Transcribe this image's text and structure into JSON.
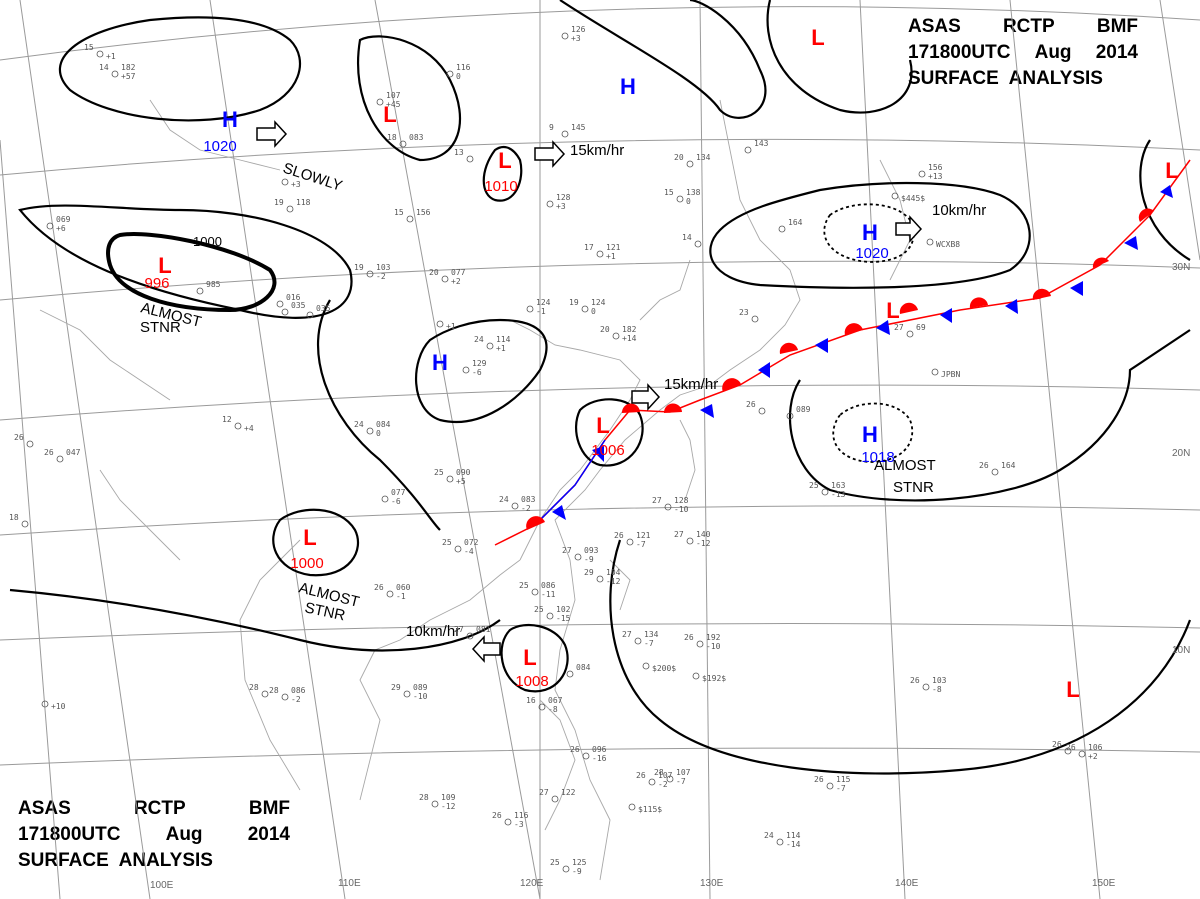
{
  "header_top": {
    "line1": [
      "ASAS",
      "RCTP",
      "BMF"
    ],
    "line2": [
      "171800UTC",
      "Aug",
      "2014"
    ],
    "line3": "SURFACE  ANALYSIS"
  },
  "header_bottom": {
    "line1": [
      "ASAS",
      "RCTP",
      "BMF"
    ],
    "line2": [
      "171800UTC",
      "Aug",
      "2014"
    ],
    "line3": "SURFACE  ANALYSIS"
  },
  "lon_labels": [
    "100E",
    "110E",
    "120E",
    "130E",
    "140E",
    "150E"
  ],
  "lat_labels": [
    "30N",
    "20N",
    "10N"
  ],
  "systems": [
    {
      "type": "H",
      "value": "1020"
    },
    {
      "type": "L",
      "value": "996"
    },
    {
      "type": "L",
      "value": "1010"
    },
    {
      "type": "H",
      "value": ""
    },
    {
      "type": "L",
      "value": ""
    },
    {
      "type": "H",
      "value": "1020"
    },
    {
      "type": "H",
      "value": ""
    },
    {
      "type": "L",
      "value": "1006"
    },
    {
      "type": "L",
      "value": "1000"
    },
    {
      "type": "L",
      "value": "1008"
    },
    {
      "type": "H",
      "value": "1018"
    },
    {
      "type": "L",
      "value": ""
    },
    {
      "type": "L",
      "value": ""
    }
  ],
  "isobar_labels": [
    "1000"
  ],
  "motions": [
    "SLOWLY",
    "15km/hr",
    "10km/hr",
    "15km/hr",
    "10km/hr"
  ],
  "stationary_notes": [
    {
      "line1": "ALMOST",
      "line2": "STNR"
    },
    {
      "line1": "ALMOST",
      "line2": "STNR"
    },
    {
      "line1": "ALMOST",
      "line2": "STNR"
    }
  ],
  "stations": [
    {
      "temp": "14",
      "press": "182",
      "trend": "+57"
    },
    {
      "temp": "",
      "press": "126",
      "trend": "+3"
    },
    {
      "temp": "",
      "press": "116",
      "trend": "0"
    },
    {
      "temp": "",
      "press": "107",
      "trend": "+45"
    },
    {
      "temp": "18",
      "press": "083",
      "trend": ""
    },
    {
      "temp": "13",
      "press": "",
      "trend": ""
    },
    {
      "temp": "9",
      "press": "145",
      "trend": ""
    },
    {
      "temp": "",
      "press": "128",
      "trend": "+3"
    },
    {
      "temp": "20",
      "press": "134",
      "trend": ""
    },
    {
      "temp": "15",
      "press": "138",
      "trend": "0"
    },
    {
      "temp": "15",
      "press": "156",
      "trend": ""
    },
    {
      "temp": "19",
      "press": "118",
      "trend": ""
    },
    {
      "temp": "",
      "press": "069",
      "trend": "+6"
    },
    {
      "temp": "19",
      "press": "103",
      "trend": "-2"
    },
    {
      "temp": "20",
      "press": "077",
      "trend": "+2"
    },
    {
      "temp": "17",
      "press": "121",
      "trend": "+1"
    },
    {
      "temp": "",
      "press": "124",
      "trend": "-1"
    },
    {
      "temp": "19",
      "press": "124",
      "trend": "0"
    },
    {
      "temp": "24",
      "press": "114",
      "trend": "+1"
    },
    {
      "temp": "20",
      "press": "182",
      "trend": "+14"
    },
    {
      "temp": "",
      "press": "129",
      "trend": "-6"
    },
    {
      "temp": "",
      "press": "164",
      "trend": ""
    },
    {
      "temp": "",
      "press": "156",
      "trend": "+13"
    },
    {
      "temp": "",
      "press": "",
      "trend": "$445$"
    },
    {
      "temp": "",
      "press": "",
      "trend": "WCXB8"
    },
    {
      "temp": "14",
      "press": "",
      "trend": ""
    },
    {
      "temp": "",
      "press": "143",
      "trend": ""
    },
    {
      "temp": "23",
      "press": "",
      "trend": ""
    },
    {
      "temp": "27",
      "press": "69",
      "trend": ""
    },
    {
      "temp": "",
      "press": "",
      "trend": "JPBN"
    },
    {
      "temp": "",
      "press": "089",
      "trend": ""
    },
    {
      "temp": "26",
      "press": "",
      "trend": ""
    },
    {
      "temp": "26",
      "press": "047",
      "trend": ""
    },
    {
      "temp": "12",
      "press": "",
      "trend": "+4"
    },
    {
      "temp": "24",
      "press": "084",
      "trend": "0"
    },
    {
      "temp": "25",
      "press": "090",
      "trend": "+5"
    },
    {
      "temp": "24",
      "press": "083",
      "trend": "-2"
    },
    {
      "temp": "25",
      "press": "072",
      "trend": "-4"
    },
    {
      "temp": "27",
      "press": "128",
      "trend": "-10"
    },
    {
      "temp": "26",
      "press": "121",
      "trend": "-7"
    },
    {
      "temp": "27",
      "press": "140",
      "trend": "-12"
    },
    {
      "temp": "27",
      "press": "093",
      "trend": "-9"
    },
    {
      "temp": "29",
      "press": "104",
      "trend": "-12"
    },
    {
      "temp": "26",
      "press": "060",
      "trend": "-1"
    },
    {
      "temp": "25",
      "press": "086",
      "trend": "-11"
    },
    {
      "temp": "25",
      "press": "102",
      "trend": "-15"
    },
    {
      "temp": "27",
      "press": "081",
      "trend": ""
    },
    {
      "temp": "27",
      "press": "134",
      "trend": "-7"
    },
    {
      "temp": "26",
      "press": "192",
      "trend": "-10"
    },
    {
      "temp": "",
      "press": "",
      "trend": "$200$"
    },
    {
      "temp": "",
      "press": "",
      "trend": "$192$"
    },
    {
      "temp": "28",
      "press": "086",
      "trend": "-2"
    },
    {
      "temp": "29",
      "press": "089",
      "trend": "-10"
    },
    {
      "temp": "",
      "press": "084",
      "trend": ""
    },
    {
      "temp": "16",
      "press": "067",
      "trend": "-8"
    },
    {
      "temp": "26",
      "press": "096",
      "trend": "-16"
    },
    {
      "temp": "26",
      "press": "103",
      "trend": "-8"
    },
    {
      "temp": "26",
      "press": "107",
      "trend": "-2"
    },
    {
      "temp": "28",
      "press": "107",
      "trend": "-7"
    },
    {
      "temp": "28",
      "press": "109",
      "trend": "-12"
    },
    {
      "temp": "26",
      "press": "116",
      "trend": "-3"
    },
    {
      "temp": "27",
      "press": "122",
      "trend": ""
    },
    {
      "temp": "",
      "press": "",
      "trend": "$115$"
    },
    {
      "temp": "26",
      "press": "115",
      "trend": "-7"
    },
    {
      "temp": "24",
      "press": "114",
      "trend": "-14"
    },
    {
      "temp": "25",
      "press": "125",
      "trend": "-9"
    },
    {
      "temp": "26",
      "press": "106",
      "trend": "+2"
    },
    {
      "temp": "25",
      "press": "163",
      "trend": "-13"
    },
    {
      "temp": "26",
      "press": "164",
      "trend": ""
    },
    {
      "temp": "18",
      "press": "",
      "trend": ""
    },
    {
      "temp": "15",
      "press": "",
      "trend": "+1"
    },
    {
      "temp": "",
      "press": "",
      "trend": "+3"
    },
    {
      "temp": "",
      "press": "035",
      "trend": ""
    },
    {
      "temp": "",
      "press": "016",
      "trend": ""
    },
    {
      "temp": "",
      "press": "985",
      "trend": ""
    },
    {
      "temp": "",
      "press": "035",
      "trend": ""
    },
    {
      "temp": "",
      "press": "",
      "trend": "+1"
    },
    {
      "temp": "26",
      "press": "",
      "trend": ""
    },
    {
      "temp": "",
      "press": "077",
      "trend": "-6"
    },
    {
      "temp": "",
      "press": "",
      "trend": "+10"
    },
    {
      "temp": "28",
      "press": "",
      "trend": ""
    },
    {
      "temp": "26",
      "press": "",
      "trend": ""
    }
  ],
  "colors": {
    "high": "#0000ff",
    "low": "#ff0000",
    "warm_front": "#ff0000",
    "cold_front": "#0000ff"
  }
}
